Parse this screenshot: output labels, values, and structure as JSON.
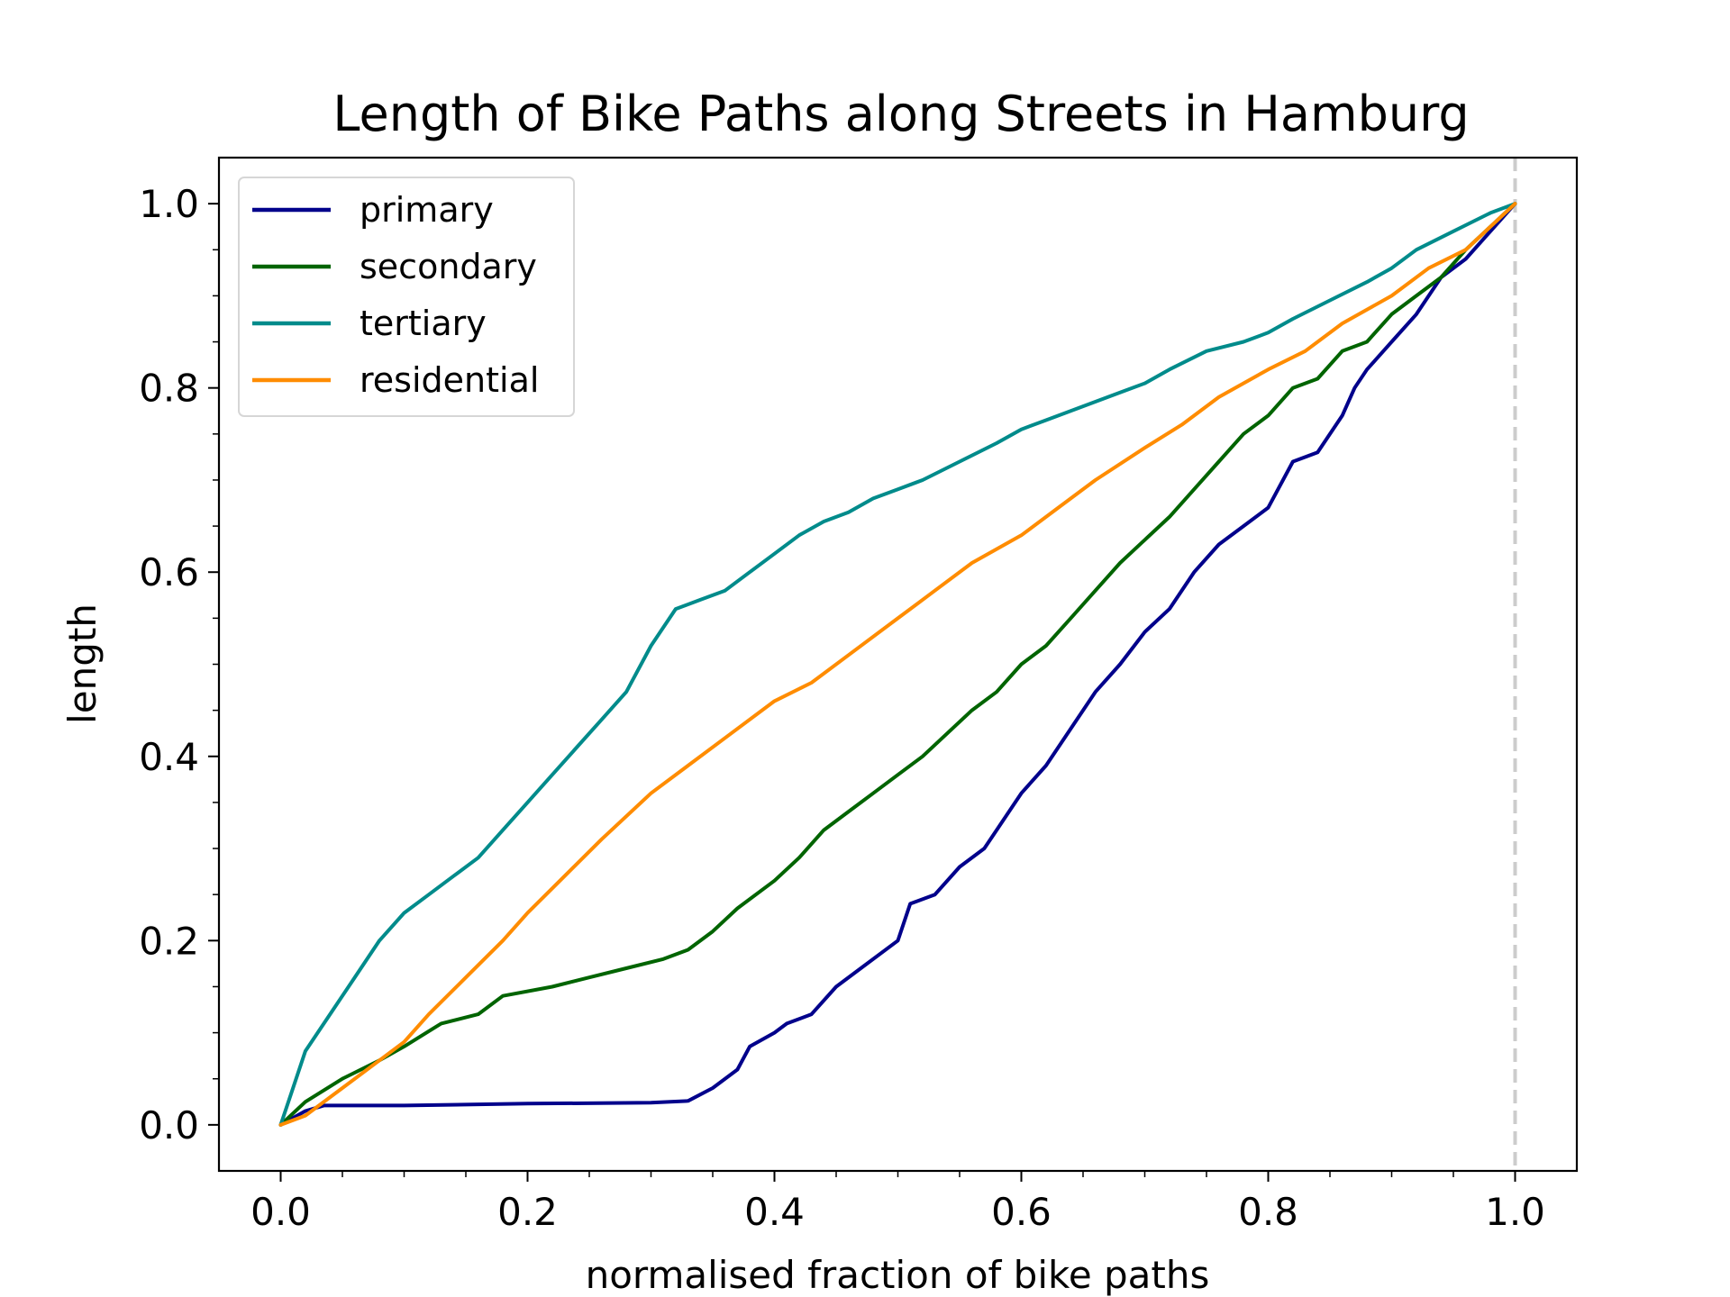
{
  "chart_data": {
    "type": "line",
    "title": "Length of Bike Paths along Streets in Hamburg",
    "xlabel": "normalised fraction of bike paths",
    "ylabel": "length",
    "xlim": [
      -0.05,
      1.05
    ],
    "ylim": [
      -0.05,
      1.05
    ],
    "xticks": [
      "0.0",
      "0.2",
      "0.4",
      "0.6",
      "0.8",
      "1.0"
    ],
    "yticks": [
      "0.0",
      "0.2",
      "0.4",
      "0.6",
      "0.8",
      "1.0"
    ],
    "grid": false,
    "legend_position": "top-left",
    "reference_line": {
      "x": 1.0,
      "style": "dashed",
      "color": "#cccccc"
    },
    "series": [
      {
        "name": "primary",
        "color": "#00008b",
        "points": [
          [
            0.0,
            0.0
          ],
          [
            0.02,
            0.015
          ],
          [
            0.035,
            0.021
          ],
          [
            0.1,
            0.021
          ],
          [
            0.2,
            0.023
          ],
          [
            0.3,
            0.024
          ],
          [
            0.33,
            0.026
          ],
          [
            0.35,
            0.04
          ],
          [
            0.37,
            0.06
          ],
          [
            0.38,
            0.085
          ],
          [
            0.4,
            0.1
          ],
          [
            0.41,
            0.11
          ],
          [
            0.43,
            0.12
          ],
          [
            0.45,
            0.15
          ],
          [
            0.47,
            0.17
          ],
          [
            0.5,
            0.2
          ],
          [
            0.51,
            0.24
          ],
          [
            0.53,
            0.25
          ],
          [
            0.55,
            0.28
          ],
          [
            0.57,
            0.3
          ],
          [
            0.58,
            0.32
          ],
          [
            0.6,
            0.36
          ],
          [
            0.62,
            0.39
          ],
          [
            0.64,
            0.43
          ],
          [
            0.66,
            0.47
          ],
          [
            0.68,
            0.5
          ],
          [
            0.7,
            0.535
          ],
          [
            0.72,
            0.56
          ],
          [
            0.74,
            0.6
          ],
          [
            0.76,
            0.63
          ],
          [
            0.78,
            0.65
          ],
          [
            0.8,
            0.67
          ],
          [
            0.82,
            0.72
          ],
          [
            0.84,
            0.73
          ],
          [
            0.86,
            0.77
          ],
          [
            0.87,
            0.8
          ],
          [
            0.88,
            0.82
          ],
          [
            0.9,
            0.85
          ],
          [
            0.92,
            0.88
          ],
          [
            0.94,
            0.92
          ],
          [
            0.96,
            0.94
          ],
          [
            0.98,
            0.97
          ],
          [
            1.0,
            1.0
          ]
        ]
      },
      {
        "name": "secondary",
        "color": "#006400",
        "points": [
          [
            0.0,
            0.0
          ],
          [
            0.02,
            0.025
          ],
          [
            0.05,
            0.05
          ],
          [
            0.08,
            0.07
          ],
          [
            0.1,
            0.085
          ],
          [
            0.13,
            0.11
          ],
          [
            0.16,
            0.12
          ],
          [
            0.18,
            0.14
          ],
          [
            0.22,
            0.15
          ],
          [
            0.25,
            0.16
          ],
          [
            0.28,
            0.17
          ],
          [
            0.31,
            0.18
          ],
          [
            0.33,
            0.19
          ],
          [
            0.35,
            0.21
          ],
          [
            0.37,
            0.235
          ],
          [
            0.4,
            0.265
          ],
          [
            0.42,
            0.29
          ],
          [
            0.44,
            0.32
          ],
          [
            0.46,
            0.34
          ],
          [
            0.48,
            0.36
          ],
          [
            0.5,
            0.38
          ],
          [
            0.52,
            0.4
          ],
          [
            0.54,
            0.425
          ],
          [
            0.56,
            0.45
          ],
          [
            0.58,
            0.47
          ],
          [
            0.6,
            0.5
          ],
          [
            0.62,
            0.52
          ],
          [
            0.64,
            0.55
          ],
          [
            0.66,
            0.58
          ],
          [
            0.68,
            0.61
          ],
          [
            0.7,
            0.635
          ],
          [
            0.72,
            0.66
          ],
          [
            0.74,
            0.69
          ],
          [
            0.76,
            0.72
          ],
          [
            0.78,
            0.75
          ],
          [
            0.8,
            0.77
          ],
          [
            0.82,
            0.8
          ],
          [
            0.84,
            0.81
          ],
          [
            0.86,
            0.84
          ],
          [
            0.88,
            0.85
          ],
          [
            0.9,
            0.88
          ],
          [
            0.92,
            0.9
          ],
          [
            0.94,
            0.92
          ],
          [
            0.96,
            0.95
          ],
          [
            0.98,
            0.975
          ],
          [
            1.0,
            1.0
          ]
        ]
      },
      {
        "name": "tertiary",
        "color": "#008b8b",
        "points": [
          [
            0.0,
            0.0
          ],
          [
            0.01,
            0.04
          ],
          [
            0.02,
            0.08
          ],
          [
            0.04,
            0.12
          ],
          [
            0.06,
            0.16
          ],
          [
            0.08,
            0.2
          ],
          [
            0.1,
            0.23
          ],
          [
            0.12,
            0.25
          ],
          [
            0.14,
            0.27
          ],
          [
            0.16,
            0.29
          ],
          [
            0.18,
            0.32
          ],
          [
            0.2,
            0.35
          ],
          [
            0.22,
            0.38
          ],
          [
            0.24,
            0.41
          ],
          [
            0.26,
            0.44
          ],
          [
            0.28,
            0.47
          ],
          [
            0.3,
            0.52
          ],
          [
            0.32,
            0.56
          ],
          [
            0.34,
            0.57
          ],
          [
            0.36,
            0.58
          ],
          [
            0.38,
            0.6
          ],
          [
            0.4,
            0.62
          ],
          [
            0.42,
            0.64
          ],
          [
            0.44,
            0.655
          ],
          [
            0.46,
            0.665
          ],
          [
            0.48,
            0.68
          ],
          [
            0.5,
            0.69
          ],
          [
            0.52,
            0.7
          ],
          [
            0.55,
            0.72
          ],
          [
            0.58,
            0.74
          ],
          [
            0.6,
            0.755
          ],
          [
            0.62,
            0.765
          ],
          [
            0.65,
            0.78
          ],
          [
            0.68,
            0.795
          ],
          [
            0.7,
            0.805
          ],
          [
            0.72,
            0.82
          ],
          [
            0.75,
            0.84
          ],
          [
            0.78,
            0.85
          ],
          [
            0.8,
            0.86
          ],
          [
            0.82,
            0.875
          ],
          [
            0.85,
            0.895
          ],
          [
            0.88,
            0.915
          ],
          [
            0.9,
            0.93
          ],
          [
            0.92,
            0.95
          ],
          [
            0.95,
            0.97
          ],
          [
            0.98,
            0.99
          ],
          [
            1.0,
            1.0
          ]
        ]
      },
      {
        "name": "residential",
        "color": "#ff8c00",
        "points": [
          [
            0.0,
            0.0
          ],
          [
            0.02,
            0.01
          ],
          [
            0.05,
            0.04
          ],
          [
            0.08,
            0.07
          ],
          [
            0.1,
            0.09
          ],
          [
            0.12,
            0.12
          ],
          [
            0.15,
            0.16
          ],
          [
            0.18,
            0.2
          ],
          [
            0.2,
            0.23
          ],
          [
            0.23,
            0.27
          ],
          [
            0.26,
            0.31
          ],
          [
            0.3,
            0.36
          ],
          [
            0.33,
            0.39
          ],
          [
            0.36,
            0.42
          ],
          [
            0.4,
            0.46
          ],
          [
            0.43,
            0.48
          ],
          [
            0.46,
            0.51
          ],
          [
            0.5,
            0.55
          ],
          [
            0.53,
            0.58
          ],
          [
            0.56,
            0.61
          ],
          [
            0.6,
            0.64
          ],
          [
            0.63,
            0.67
          ],
          [
            0.66,
            0.7
          ],
          [
            0.7,
            0.735
          ],
          [
            0.73,
            0.76
          ],
          [
            0.76,
            0.79
          ],
          [
            0.8,
            0.82
          ],
          [
            0.83,
            0.84
          ],
          [
            0.86,
            0.87
          ],
          [
            0.9,
            0.9
          ],
          [
            0.93,
            0.93
          ],
          [
            0.96,
            0.95
          ],
          [
            0.98,
            0.975
          ],
          [
            1.0,
            1.0
          ]
        ]
      }
    ]
  }
}
